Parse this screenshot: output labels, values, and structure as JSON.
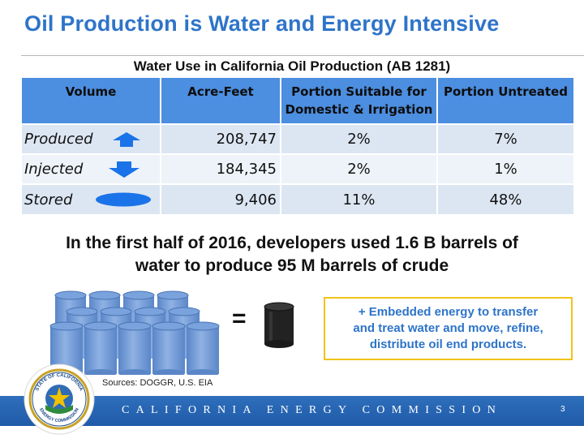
{
  "slide": {
    "title": "Oil Production is Water and Energy Intensive",
    "page_number": "3"
  },
  "table": {
    "caption": "Water Use in California Oil Production (AB 1281)",
    "headers": {
      "volume": "Volume",
      "acre_feet": "Acre-Feet",
      "suitable_line1": "Portion Suitable for",
      "suitable_line2": "Domestic & Irrigation",
      "untreated": "Portion Untreated"
    },
    "rows": [
      {
        "volume": "Produced",
        "icon": "up-arrow-icon",
        "acre_feet": "208,747",
        "suitable": "2%",
        "untreated": "7%"
      },
      {
        "volume": "Injected",
        "icon": "down-arrow-icon",
        "acre_feet": "184,345",
        "suitable": "2%",
        "untreated": "1%"
      },
      {
        "volume": "Stored",
        "icon": "water-pool-icon",
        "acre_feet": "9,406",
        "suitable": "11%",
        "untreated": "48%"
      }
    ]
  },
  "summary": {
    "line1": "In the first half of 2016, developers used 1.6 B barrels of",
    "line2": "water to produce 95 M barrels of crude"
  },
  "equation": {
    "symbol": "="
  },
  "note": {
    "line1": "+ Embedded energy to transfer",
    "line2": "and treat water and move, refine,",
    "line3": "distribute oil end products."
  },
  "sources": "Sources: DOGGR, U.S. EIA",
  "footer": {
    "organization": "CALIFORNIA ENERGY COMMISSION",
    "seal_text_top": "STATE OF CALIFORNIA",
    "seal_text_bottom": "ENERGY COMMISSION"
  },
  "colors": {
    "title_blue": "#2e74c9",
    "header_blue": "#4c8ee0",
    "icon_blue": "#1a73e8",
    "footer_blue": "#1f5aa8",
    "water_barrel_blue": "#6e98d6",
    "note_border": "#f0c419"
  }
}
